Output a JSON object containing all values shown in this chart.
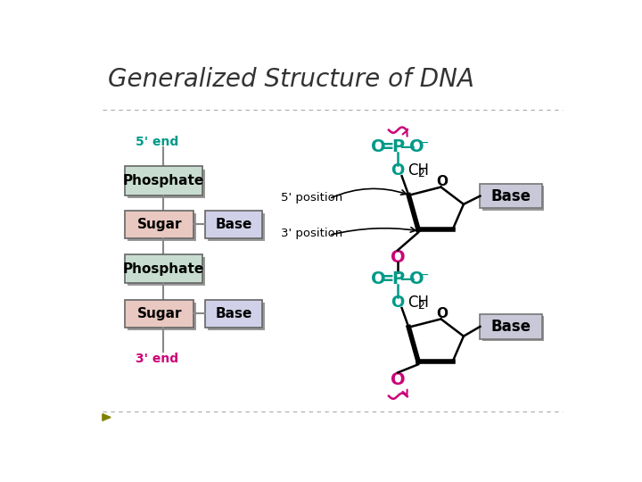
{
  "title": "Generalized Structure of DNA",
  "title_fontsize": 20,
  "title_color": "#333333",
  "bg_color": "#ffffff",
  "teal": "#009988",
  "magenta": "#cc0077",
  "black": "#000000",
  "phosphate_fill": "#c8ddd0",
  "sugar_fill": "#e8c8c0",
  "base_fill": "#d0d0e8",
  "base_right_fill": "#c8c8d8",
  "label_5end": "5' end",
  "label_3end": "3' end",
  "label_5pos": "5' position",
  "label_3pos": "3' position"
}
